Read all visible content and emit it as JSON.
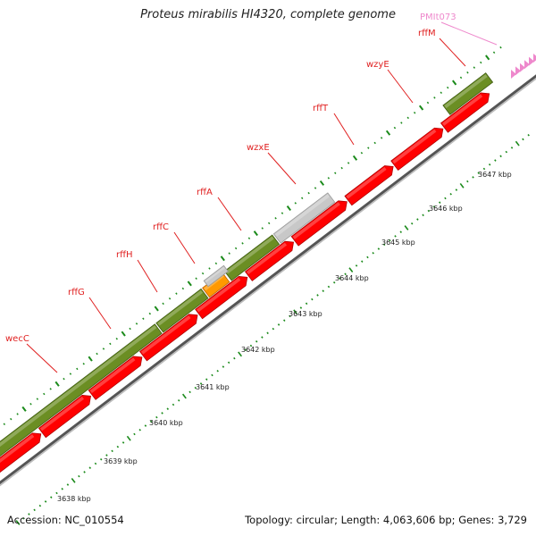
{
  "title": "Proteus mirabilis HI4320, complete genome",
  "accession": "Accession: NC_010554",
  "summary": "Topology: circular; Length: 4,063,606 bp; Genes: 3,729",
  "colors": {
    "plus_cds": "#6b8e23",
    "minus_cds": "#ff0000",
    "pseudo": "#c8c8c8",
    "other": "#ff9900",
    "plasmid_label": "#ee88cc",
    "tick": "#1a8a1a",
    "label": "#e02020"
  },
  "gene_labels": [
    {
      "name": "wecC"
    },
    {
      "name": "rffG"
    },
    {
      "name": "rffH"
    },
    {
      "name": "rffC"
    },
    {
      "name": "rffA"
    },
    {
      "name": "wzxE"
    },
    {
      "name": "rffT"
    },
    {
      "name": "wzyE"
    },
    {
      "name": "rffM"
    },
    {
      "name": "PMIt073"
    }
  ],
  "scale_labels": [
    "3638 kbp",
    "3639 kbp",
    "3640 kbp",
    "3641 kbp",
    "3642 kbp",
    "3643 kbp",
    "3644 kbp",
    "3645 kbp",
    "3646 kbp",
    "3647 kbp"
  ]
}
